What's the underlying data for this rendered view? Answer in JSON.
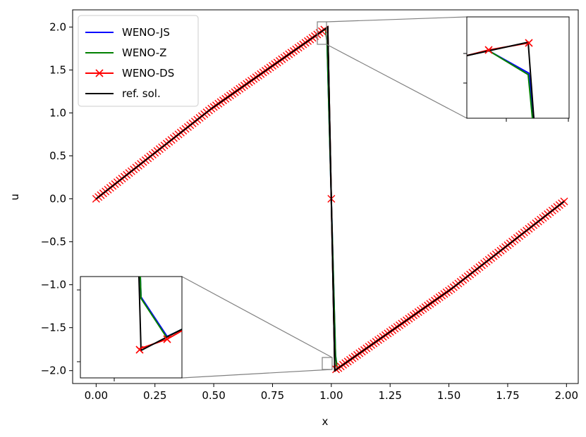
{
  "chart_data": {
    "type": "line",
    "title": "",
    "xlabel": "x",
    "ylabel": "u",
    "xlim": [
      -0.1,
      2.05
    ],
    "ylim": [
      -2.15,
      2.2
    ],
    "xticks": [
      0.0,
      0.25,
      0.5,
      0.75,
      1.0,
      1.25,
      1.5,
      1.75,
      2.0
    ],
    "xtick_labels": [
      "0.00",
      "0.25",
      "0.50",
      "0.75",
      "1.00",
      "1.25",
      "1.50",
      "1.75",
      "2.00"
    ],
    "yticks": [
      -2.0,
      -1.5,
      -1.0,
      -0.5,
      0.0,
      0.5,
      1.0,
      1.5,
      2.0
    ],
    "ytick_labels": [
      "−2.0",
      "−1.5",
      "−1.0",
      "−0.5",
      "0.0",
      "0.5",
      "1.0",
      "1.5",
      "2.0"
    ],
    "grid": false,
    "legend_position": "top-left",
    "series": [
      {
        "name": "WENO-JS",
        "color": "#0000ff",
        "marker": "none",
        "points": [
          [
            0.0,
            0.0
          ],
          [
            0.49,
            1.05
          ],
          [
            0.975,
            1.98
          ],
          [
            0.982,
            1.82
          ],
          [
            1.0,
            0.0
          ],
          [
            1.018,
            -1.82
          ],
          [
            1.025,
            -1.98
          ],
          [
            1.51,
            -1.05
          ],
          [
            1.99,
            -0.03
          ]
        ]
      },
      {
        "name": "WENO-Z",
        "color": "#008000",
        "marker": "none",
        "points": [
          [
            0.0,
            0.0
          ],
          [
            0.49,
            1.05
          ],
          [
            0.975,
            1.98
          ],
          [
            0.982,
            1.83
          ],
          [
            1.0,
            0.0
          ],
          [
            1.018,
            -1.83
          ],
          [
            1.025,
            -1.98
          ],
          [
            1.51,
            -1.05
          ],
          [
            1.99,
            -0.03
          ]
        ]
      },
      {
        "name": "WENO-DS",
        "color": "#ff0000",
        "marker": "x",
        "x_range": [
          0.0,
          1.99
        ],
        "n_points": 200,
        "points": [
          [
            0.0,
            0.0
          ],
          [
            0.49,
            1.05
          ],
          [
            0.975,
            1.98
          ],
          [
            0.985,
            1.99
          ],
          [
            1.0,
            0.0
          ],
          [
            1.015,
            -1.99
          ],
          [
            1.025,
            -1.98
          ],
          [
            1.51,
            -1.05
          ],
          [
            1.99,
            -0.03
          ]
        ]
      },
      {
        "name": "ref. sol.",
        "color": "#000000",
        "marker": "none",
        "points": [
          [
            0.0,
            0.0
          ],
          [
            0.49,
            1.05
          ],
          [
            0.975,
            1.98
          ],
          [
            0.985,
            2.0
          ],
          [
            1.015,
            -2.0
          ],
          [
            1.025,
            -1.98
          ],
          [
            1.51,
            -1.05
          ],
          [
            1.99,
            -0.03
          ]
        ]
      }
    ],
    "insets": [
      {
        "location": "upper-right",
        "zoom_region": {
          "x": [
            0.97,
            1.01
          ],
          "y": [
            1.75,
            2.05
          ]
        }
      },
      {
        "location": "lower-left",
        "zoom_region": {
          "x": [
            0.99,
            1.03
          ],
          "y": [
            -2.05,
            -1.95
          ]
        }
      }
    ]
  }
}
